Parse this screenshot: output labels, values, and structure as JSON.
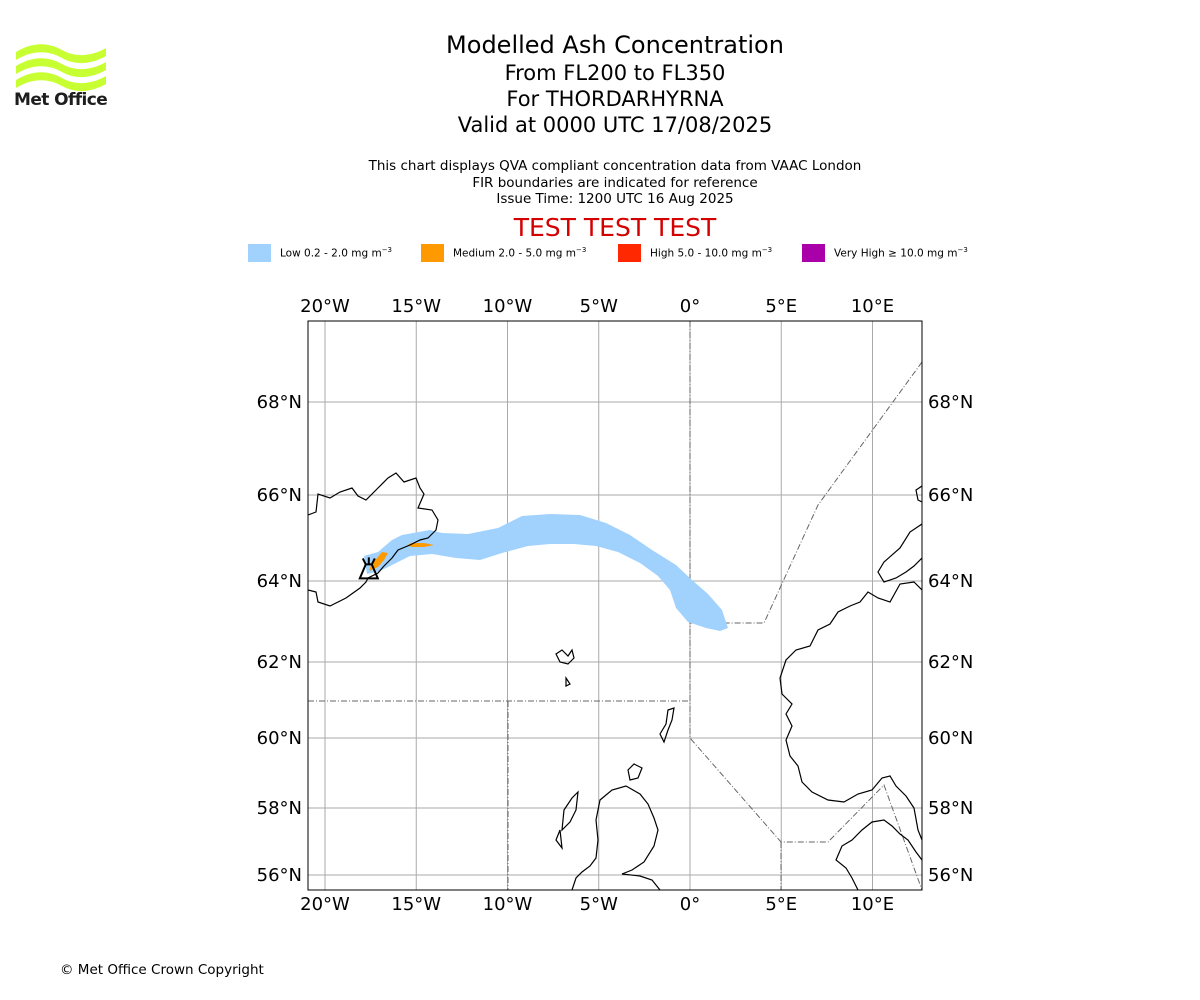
{
  "brand": {
    "logo_text": "Met Office",
    "logo_color": "#c8ff32"
  },
  "title": {
    "line1": "Modelled Ash Concentration",
    "line2": "From FL200 to FL350",
    "line3": "For THORDARHYRNA",
    "line4": "Valid at 0000 UTC 17/08/2025"
  },
  "info": {
    "line1": "This chart displays QVA compliant concentration data from VAAC London",
    "line2": "FIR boundaries are indicated for reference",
    "line3": "Issue Time: 1200 UTC 16 Aug 2025"
  },
  "test_banner": "TEST TEST TEST",
  "legend": [
    {
      "label": "Low 0.2 - 2.0 mg m",
      "sup": "−3",
      "color": "#a0d2fd"
    },
    {
      "label": "Medium 2.0 - 5.0 mg m",
      "sup": "−3",
      "color": "#ff9900"
    },
    {
      "label": "High 5.0 - 10.0 mg m",
      "sup": "−3",
      "color": "#ff2800"
    },
    {
      "label": "Very High  ≥  10.0 mg m",
      "sup": "−3",
      "color": "#aa00aa"
    }
  ],
  "map": {
    "lon_ticks": [
      {
        "value": -20,
        "label": "20°W"
      },
      {
        "value": -15,
        "label": "15°W"
      },
      {
        "value": -10,
        "label": "10°W"
      },
      {
        "value": -5,
        "label": "5°W"
      },
      {
        "value": 0,
        "label": "0°"
      },
      {
        "value": 5,
        "label": "5°E"
      },
      {
        "value": 10,
        "label": "10°E"
      }
    ],
    "lat_ticks": [
      {
        "value": 68,
        "label": "68°N"
      },
      {
        "value": 66,
        "label": "66°N"
      },
      {
        "value": 64,
        "label": "64°N"
      },
      {
        "value": 62,
        "label": "62°N"
      },
      {
        "value": 60,
        "label": "60°N"
      },
      {
        "value": 58,
        "label": "58°N"
      },
      {
        "value": 56,
        "label": "56°N"
      }
    ],
    "volcano": {
      "name": "THORDARHYRNA",
      "lon": -17.6,
      "lat": 64.27
    }
  },
  "footer": "© Met Office Crown Copyright"
}
